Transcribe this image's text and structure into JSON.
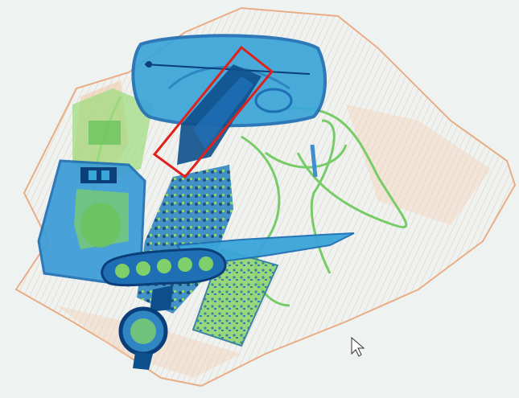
{
  "scene": {
    "type": "x-ray baggage scan",
    "background_color": "#eef3f2",
    "palette": {
      "organic": "#e8a77a",
      "inorganic_light": "#7fd06a",
      "mixed": "#3fa6d8",
      "dense": "#1f6fb5",
      "very_dense": "#0b3f7a",
      "highlight_box": "#e0201c"
    },
    "objects": [
      {
        "name": "bag-outline",
        "material": "organic"
      },
      {
        "name": "glasses-case",
        "material": "mixed"
      },
      {
        "name": "threat-item-highlighted",
        "material": "very_dense"
      },
      {
        "name": "charger-block",
        "material": "mixed"
      },
      {
        "name": "knife-blade",
        "material": "mixed"
      },
      {
        "name": "knife-handle-with-holes",
        "material": "dense"
      },
      {
        "name": "circuit-board",
        "material": "inorganic_light"
      },
      {
        "name": "phone-board",
        "material": "inorganic_light"
      },
      {
        "name": "wristwatch",
        "material": "dense"
      },
      {
        "name": "cable-loop",
        "material": "inorganic_light"
      }
    ],
    "detections": [
      {
        "label": "",
        "color": "#e0201c"
      }
    ],
    "cursor": {
      "icon": "arrow-pointer-icon"
    }
  }
}
